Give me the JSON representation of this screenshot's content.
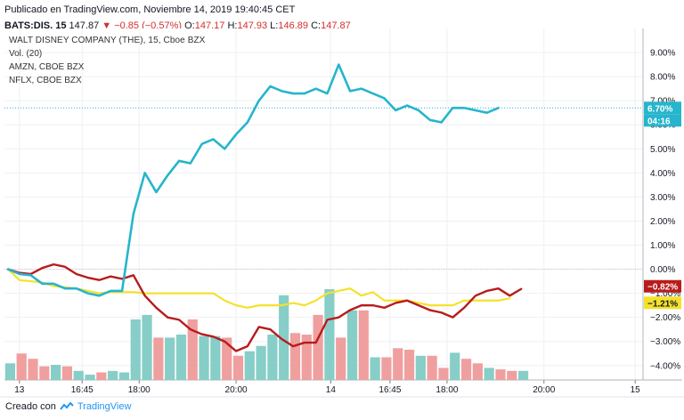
{
  "header": {
    "published": "Publicado en TradingView.com, Noviembre 14, 2019 19:40:45 CET",
    "symbol": "BATS:DIS, 15",
    "price": "147.87",
    "change": "▼ −0.85 (−0.57%)",
    "open_label": "O:",
    "open": "147.17",
    "high_label": "H:",
    "high": "147.93",
    "low_label": "L:",
    "low": "146.89",
    "close_label": "C:",
    "close": "147.87"
  },
  "legend": {
    "main": "WALT DISNEY COMPANY (THE), 15, Cboe BZX",
    "vol": "Vol. (20)",
    "s2": "AMZN, CBOE BZX",
    "s3": "NFLX, CBOE BZX"
  },
  "footer": {
    "text": "Creado con",
    "brand": "TradingView"
  },
  "colors": {
    "nflx": "#26b5cc",
    "amzn": "#f5e12c",
    "dis": "#b71c1c",
    "vol_up": "#80cbc4",
    "vol_down": "#ef9a9a"
  },
  "chart_data": {
    "type": "line",
    "title": "WALT DISNEY COMPANY (THE), 15, Cboe BZX",
    "ylabel": "%",
    "ylim": [
      -4.6,
      10.0
    ],
    "yticks": [
      9,
      8,
      7,
      6,
      5,
      4,
      3,
      2,
      1,
      0,
      -1,
      -2,
      -3,
      -4
    ],
    "ytick_labels": [
      "9.00%",
      "8.00%",
      "7.00%",
      "6.00%",
      "5.00%",
      "4.00%",
      "3.00%",
      "2.00%",
      "1.00%",
      "0.00%",
      "−1.00%",
      "−2.00%",
      "−3.00%",
      "−4.00%"
    ],
    "x_ticks": [
      {
        "label": "13",
        "i": 1
      },
      {
        "label": "16:45",
        "i": 6.5
      },
      {
        "label": "18:00",
        "i": 11.5
      },
      {
        "label": "20:00",
        "i": 20
      },
      {
        "label": "14",
        "i": 28.3
      },
      {
        "label": "16:45",
        "i": 33.5
      },
      {
        "label": "18:00",
        "i": 38.5
      },
      {
        "label": "20:00",
        "i": 47
      },
      {
        "label": "15",
        "i": 55
      }
    ],
    "x_range": [
      0,
      56
    ],
    "series": [
      {
        "name": "NFLX, CBOE BZX",
        "key": "nflx",
        "values": [
          0,
          -0.2,
          -0.25,
          -0.6,
          -0.6,
          -0.8,
          -0.8,
          -1.0,
          -1.1,
          -0.9,
          -0.9,
          2.3,
          4.0,
          3.2,
          3.9,
          4.5,
          4.4,
          5.2,
          5.4,
          5.0,
          5.6,
          6.1,
          7.0,
          7.6,
          7.4,
          7.3,
          7.3,
          7.5,
          7.3,
          8.5,
          7.4,
          7.5,
          7.3,
          7.1,
          6.6,
          6.8,
          6.6,
          6.2,
          6.1,
          6.7,
          6.7,
          6.6,
          6.5,
          6.7
        ],
        "last_label": "6.70%",
        "countdown": "04:16"
      },
      {
        "name": "AMZN, CBOE BZX",
        "key": "amzn",
        "values": [
          0,
          -0.45,
          -0.5,
          -0.55,
          -0.7,
          -0.75,
          -0.8,
          -0.9,
          -1.0,
          -0.95,
          -0.95,
          -0.95,
          -1.0,
          -1.0,
          -1.0,
          -1.0,
          -1.0,
          -1.0,
          -1.0,
          -1.3,
          -1.5,
          -1.6,
          -1.5,
          -1.5,
          -1.5,
          -1.4,
          -1.5,
          -1.3,
          -1.0,
          -0.9,
          -0.8,
          -1.1,
          -0.95,
          -1.3,
          -1.3,
          -1.3,
          -1.4,
          -1.5,
          -1.5,
          -1.5,
          -1.3,
          -1.3,
          -1.3,
          -1.3,
          -1.21
        ],
        "last_label": "−1.21%"
      },
      {
        "name": "WALT DISNEY COMPANY (THE)",
        "key": "dis",
        "values": [
          0,
          -0.15,
          -0.2,
          0.05,
          0.2,
          0.1,
          -0.2,
          -0.35,
          -0.45,
          -0.3,
          -0.4,
          -0.25,
          -1.1,
          -1.6,
          -2.0,
          -2.1,
          -2.5,
          -2.7,
          -2.8,
          -3.0,
          -3.4,
          -3.2,
          -2.4,
          -2.5,
          -2.9,
          -3.2,
          -3.05,
          -3.05,
          -2.1,
          -2.0,
          -1.7,
          -1.5,
          -1.5,
          -1.6,
          -1.4,
          -1.3,
          -1.5,
          -1.7,
          -1.8,
          -2.0,
          -1.6,
          -1.1,
          -0.9,
          -0.8,
          -1.1,
          -0.82
        ],
        "last_label": "−0.82%"
      }
    ],
    "volume": [
      {
        "h": 0.22,
        "up": true
      },
      {
        "h": 0.35,
        "up": false
      },
      {
        "h": 0.28,
        "up": false
      },
      {
        "h": 0.18,
        "up": false
      },
      {
        "h": 0.2,
        "up": true
      },
      {
        "h": 0.18,
        "up": false
      },
      {
        "h": 0.12,
        "up": true
      },
      {
        "h": 0.07,
        "up": true
      },
      {
        "h": 0.1,
        "up": false
      },
      {
        "h": 0.12,
        "up": true
      },
      {
        "h": 0.1,
        "up": true
      },
      {
        "h": 0.8,
        "up": true
      },
      {
        "h": 0.86,
        "up": true
      },
      {
        "h": 0.56,
        "up": false
      },
      {
        "h": 0.56,
        "up": true
      },
      {
        "h": 0.6,
        "up": true
      },
      {
        "h": 0.8,
        "up": false
      },
      {
        "h": 0.58,
        "up": true
      },
      {
        "h": 0.58,
        "up": true
      },
      {
        "h": 0.56,
        "up": false
      },
      {
        "h": 0.32,
        "up": false
      },
      {
        "h": 0.38,
        "up": true
      },
      {
        "h": 0.45,
        "up": true
      },
      {
        "h": 0.6,
        "up": true
      },
      {
        "h": 1.12,
        "up": true
      },
      {
        "h": 0.62,
        "up": false
      },
      {
        "h": 0.6,
        "up": false
      },
      {
        "h": 0.86,
        "up": false
      },
      {
        "h": 1.2,
        "up": true
      },
      {
        "h": 0.56,
        "up": false
      },
      {
        "h": 0.92,
        "up": true
      },
      {
        "h": 0.92,
        "up": false
      },
      {
        "h": 0.3,
        "up": true
      },
      {
        "h": 0.3,
        "up": false
      },
      {
        "h": 0.42,
        "up": false
      },
      {
        "h": 0.4,
        "up": false
      },
      {
        "h": 0.32,
        "up": true
      },
      {
        "h": 0.32,
        "up": false
      },
      {
        "h": 0.16,
        "up": false
      },
      {
        "h": 0.36,
        "up": true
      },
      {
        "h": 0.28,
        "up": false
      },
      {
        "h": 0.22,
        "up": false
      },
      {
        "h": 0.16,
        "up": true
      },
      {
        "h": 0.14,
        "up": false
      },
      {
        "h": 0.12,
        "up": false
      },
      {
        "h": 0.12,
        "up": true
      }
    ],
    "grid": true
  }
}
